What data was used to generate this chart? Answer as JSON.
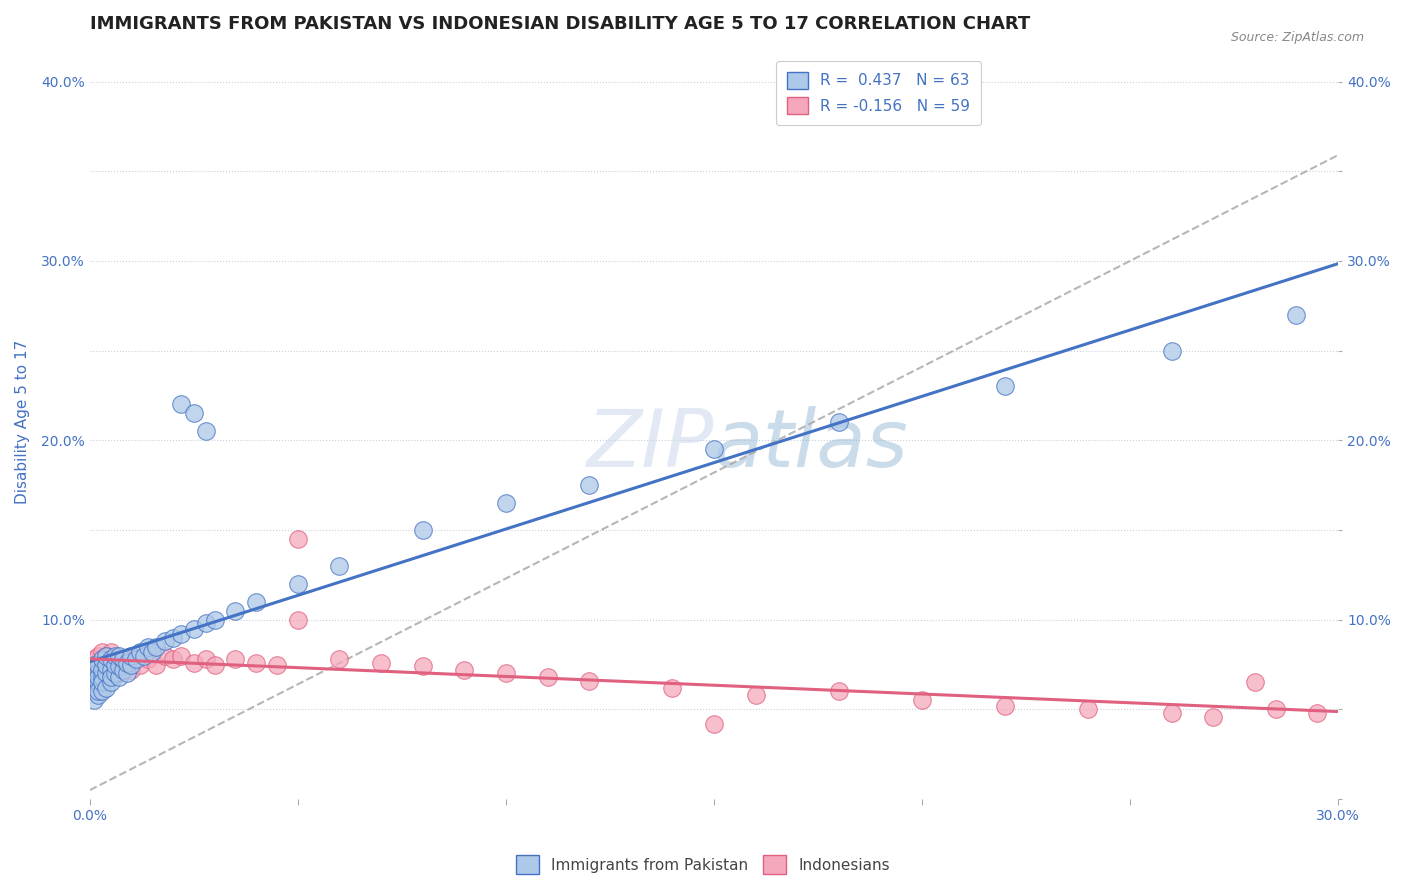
{
  "title": "IMMIGRANTS FROM PAKISTAN VS INDONESIAN DISABILITY AGE 5 TO 17 CORRELATION CHART",
  "source_text": "Source: ZipAtlas.com",
  "ylabel": "Disability Age 5 to 17",
  "xlim": [
    0.0,
    0.3
  ],
  "ylim": [
    0.0,
    0.42
  ],
  "xticks": [
    0.0,
    0.05,
    0.1,
    0.15,
    0.2,
    0.25,
    0.3
  ],
  "xticklabels": [
    "0.0%",
    "",
    "",
    "",
    "",
    "",
    "30.0%"
  ],
  "yticks": [
    0.0,
    0.05,
    0.1,
    0.15,
    0.2,
    0.25,
    0.3,
    0.35,
    0.4
  ],
  "yticklabels": [
    "",
    "",
    "10.0%",
    "",
    "20.0%",
    "",
    "30.0%",
    "",
    "40.0%"
  ],
  "legend_r1": "R =  0.437   N = 63",
  "legend_r2": "R = -0.156   N = 59",
  "blue_color": "#adc8e8",
  "pink_color": "#f5a8bc",
  "blue_line_color": "#4472c4",
  "pink_line_color": "#e06080",
  "gray_dash_color": "#aaaaaa",
  "watermark_color": "#c8d8ee",
  "axis_label_color": "#4472c4",
  "pakistan_x": [
    0.001,
    0.001,
    0.001,
    0.001,
    0.001,
    0.002,
    0.002,
    0.002,
    0.002,
    0.002,
    0.002,
    0.003,
    0.003,
    0.003,
    0.003,
    0.003,
    0.004,
    0.004,
    0.004,
    0.004,
    0.005,
    0.005,
    0.005,
    0.005,
    0.006,
    0.006,
    0.006,
    0.007,
    0.007,
    0.007,
    0.008,
    0.008,
    0.009,
    0.009,
    0.01,
    0.01,
    0.011,
    0.012,
    0.013,
    0.014,
    0.015,
    0.016,
    0.018,
    0.02,
    0.022,
    0.025,
    0.028,
    0.03,
    0.035,
    0.04,
    0.05,
    0.06,
    0.08,
    0.1,
    0.12,
    0.15,
    0.18,
    0.22,
    0.26,
    0.29,
    0.022,
    0.025,
    0.028
  ],
  "pakistan_y": [
    0.06,
    0.065,
    0.07,
    0.055,
    0.075,
    0.058,
    0.065,
    0.07,
    0.06,
    0.068,
    0.075,
    0.06,
    0.068,
    0.072,
    0.065,
    0.078,
    0.062,
    0.07,
    0.075,
    0.08,
    0.065,
    0.072,
    0.078,
    0.068,
    0.07,
    0.075,
    0.08,
    0.068,
    0.074,
    0.08,
    0.072,
    0.078,
    0.07,
    0.076,
    0.075,
    0.08,
    0.078,
    0.082,
    0.08,
    0.085,
    0.082,
    0.085,
    0.088,
    0.09,
    0.092,
    0.095,
    0.098,
    0.1,
    0.105,
    0.11,
    0.12,
    0.13,
    0.15,
    0.165,
    0.175,
    0.195,
    0.21,
    0.23,
    0.25,
    0.27,
    0.22,
    0.215,
    0.205
  ],
  "indonesian_x": [
    0.001,
    0.001,
    0.001,
    0.002,
    0.002,
    0.002,
    0.002,
    0.003,
    0.003,
    0.003,
    0.003,
    0.004,
    0.004,
    0.004,
    0.005,
    0.005,
    0.005,
    0.006,
    0.006,
    0.007,
    0.007,
    0.008,
    0.008,
    0.009,
    0.01,
    0.01,
    0.012,
    0.014,
    0.016,
    0.018,
    0.02,
    0.022,
    0.025,
    0.028,
    0.03,
    0.035,
    0.04,
    0.045,
    0.05,
    0.06,
    0.07,
    0.08,
    0.09,
    0.1,
    0.11,
    0.12,
    0.14,
    0.16,
    0.18,
    0.2,
    0.22,
    0.24,
    0.26,
    0.27,
    0.285,
    0.295,
    0.05,
    0.15,
    0.28
  ],
  "indonesian_y": [
    0.072,
    0.068,
    0.078,
    0.065,
    0.07,
    0.075,
    0.08,
    0.065,
    0.072,
    0.078,
    0.082,
    0.068,
    0.075,
    0.08,
    0.07,
    0.076,
    0.082,
    0.072,
    0.078,
    0.07,
    0.076,
    0.072,
    0.078,
    0.074,
    0.072,
    0.078,
    0.075,
    0.078,
    0.075,
    0.08,
    0.078,
    0.08,
    0.076,
    0.078,
    0.075,
    0.078,
    0.076,
    0.075,
    0.1,
    0.078,
    0.076,
    0.074,
    0.072,
    0.07,
    0.068,
    0.066,
    0.062,
    0.058,
    0.06,
    0.055,
    0.052,
    0.05,
    0.048,
    0.046,
    0.05,
    0.048,
    0.145,
    0.042,
    0.065
  ],
  "title_fontsize": 13,
  "axis_label_fontsize": 11,
  "tick_fontsize": 10
}
